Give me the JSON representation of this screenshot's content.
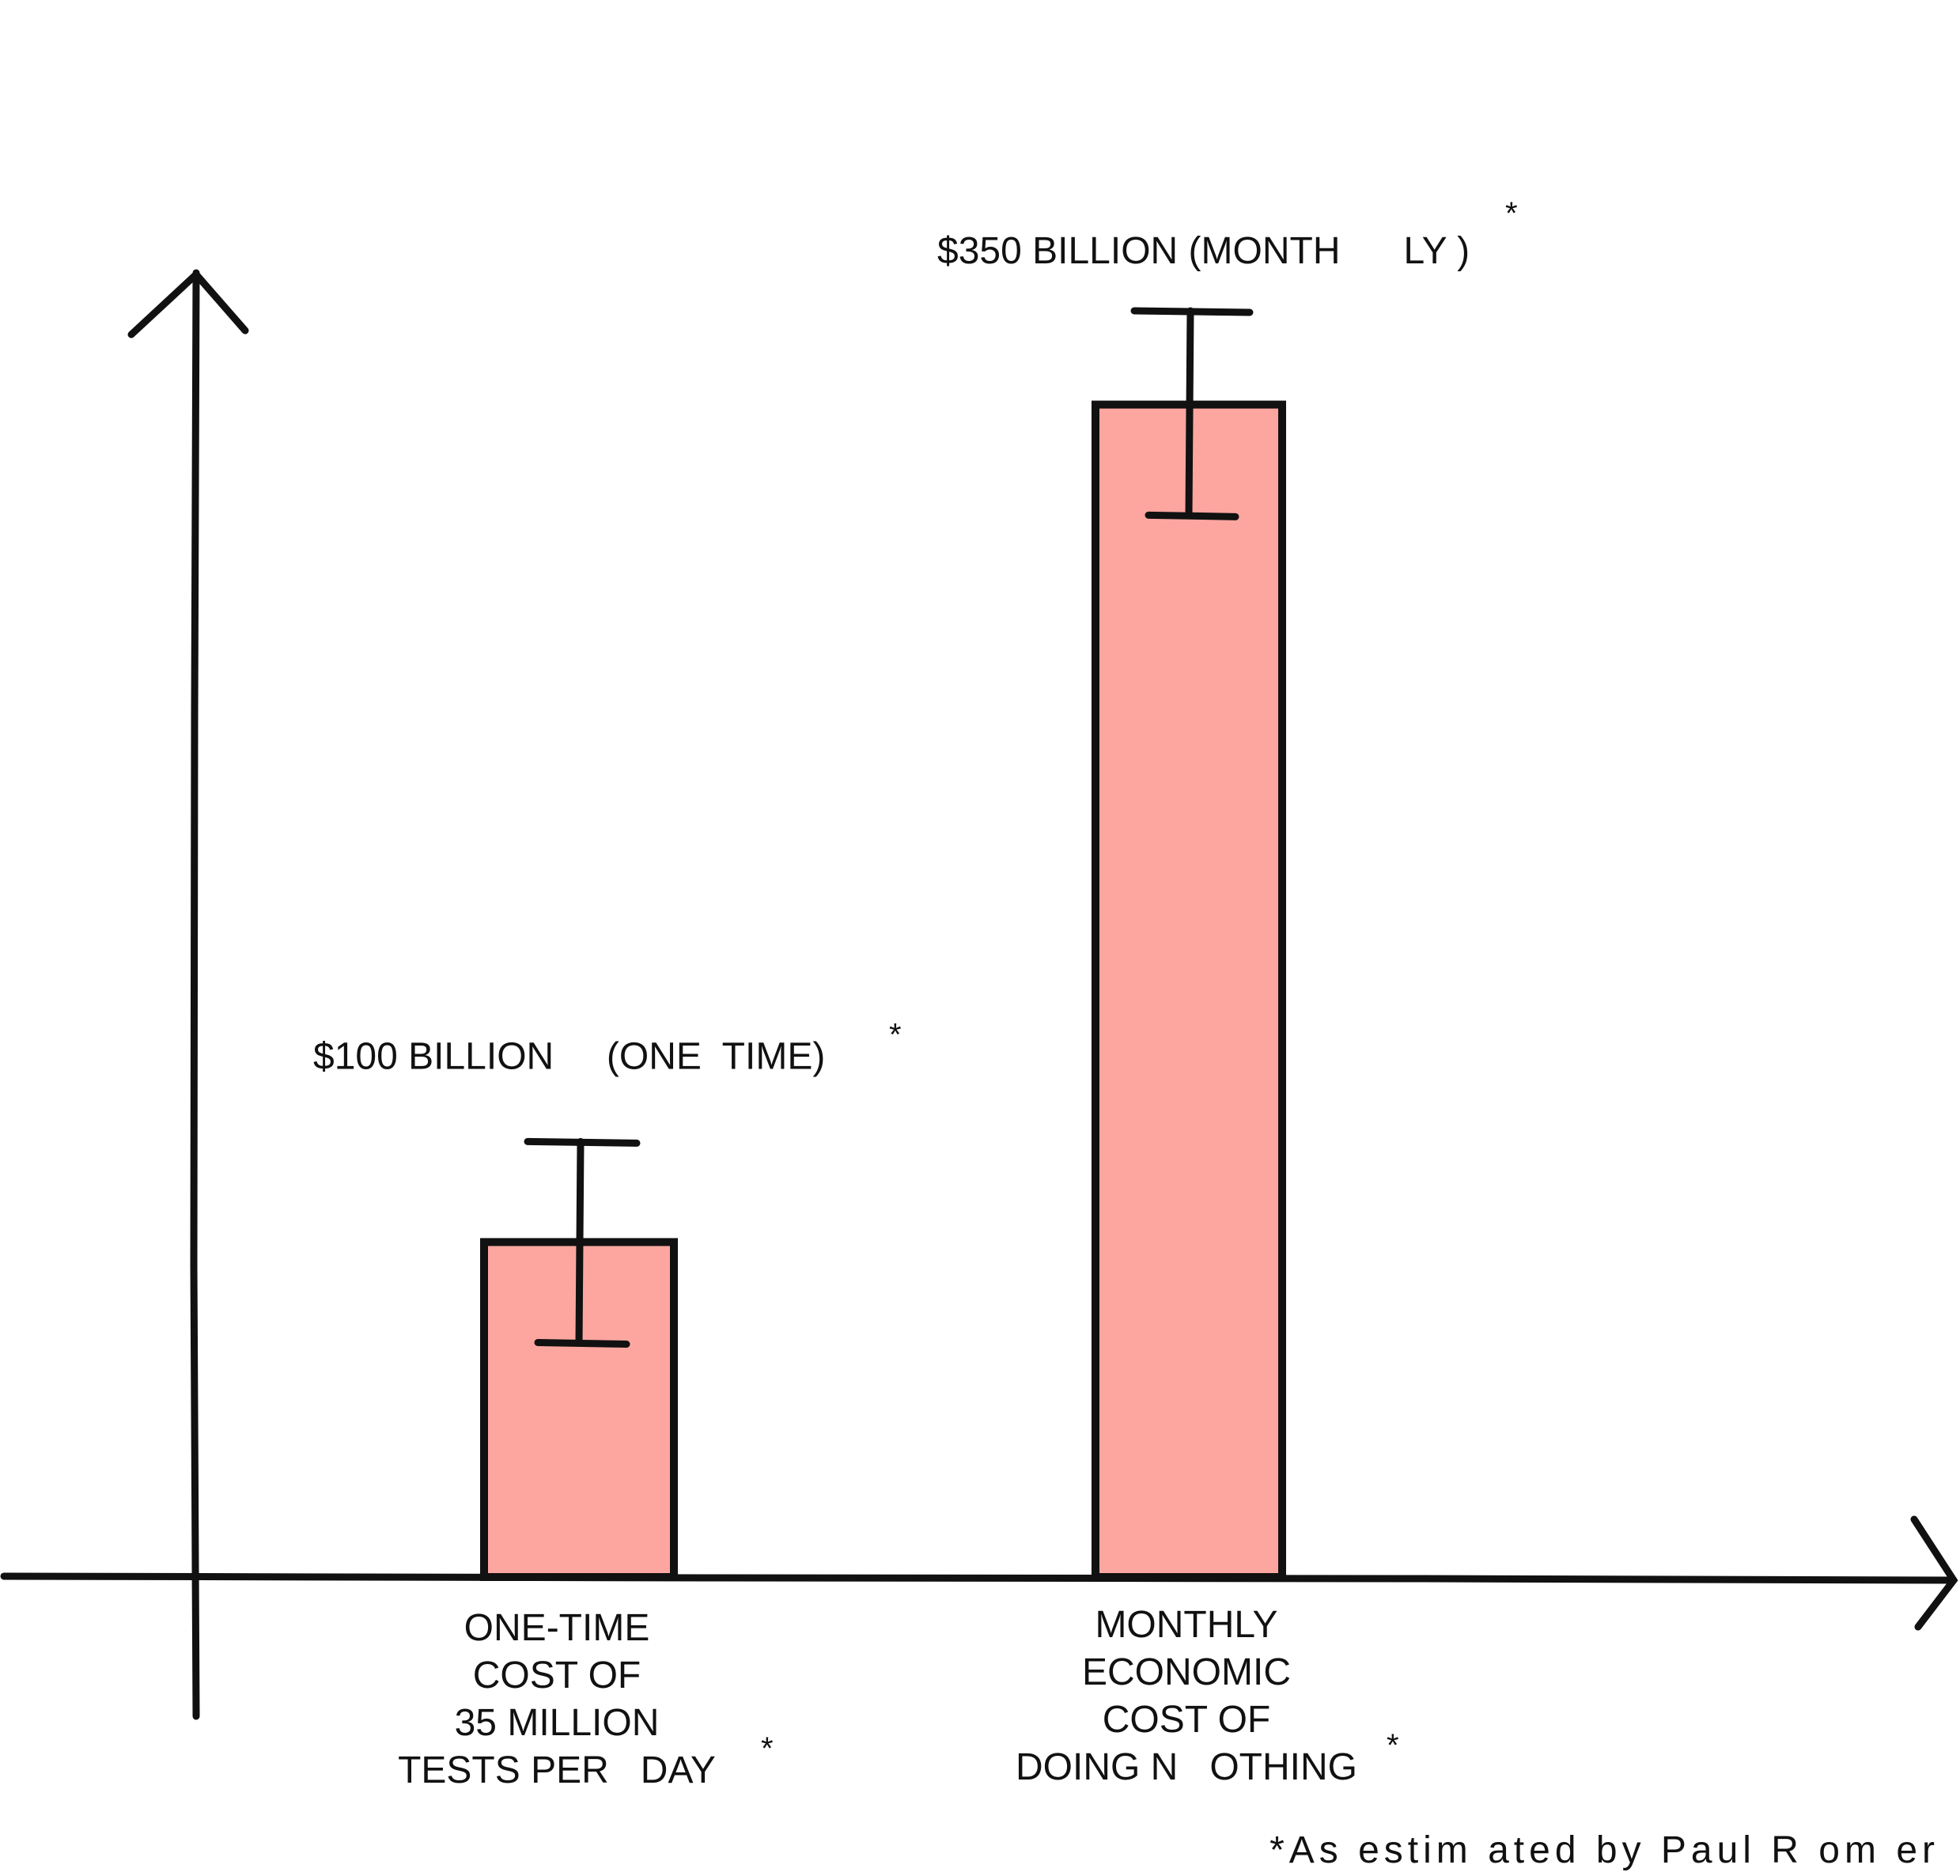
{
  "chart_data": {
    "type": "bar",
    "categories": [
      [
        "ONE-TIME",
        "COST OF",
        "35 MILLION",
        "TESTS PER   DAY"
      ],
      [
        "MONTHLY",
        "ECONOMIC",
        "COST OF",
        "DOING N   OTHING"
      ]
    ],
    "values": [
      100,
      350
    ],
    "value_labels": [
      "$100 BILLION     (ONE  TIME)",
      "$350 BILLION (MONTH      LY )"
    ],
    "error_bars": [
      {
        "low": 70,
        "high": 130
      },
      {
        "low": 317,
        "high": 378
      }
    ],
    "category_marks": [
      "*",
      "*"
    ],
    "value_marks": [
      "*",
      "*"
    ],
    "ylim": [
      0,
      450
    ],
    "grid": false,
    "bar_color": "#fda6a0",
    "footnote": "*As  estim ated  by  Paul R  om er"
  }
}
